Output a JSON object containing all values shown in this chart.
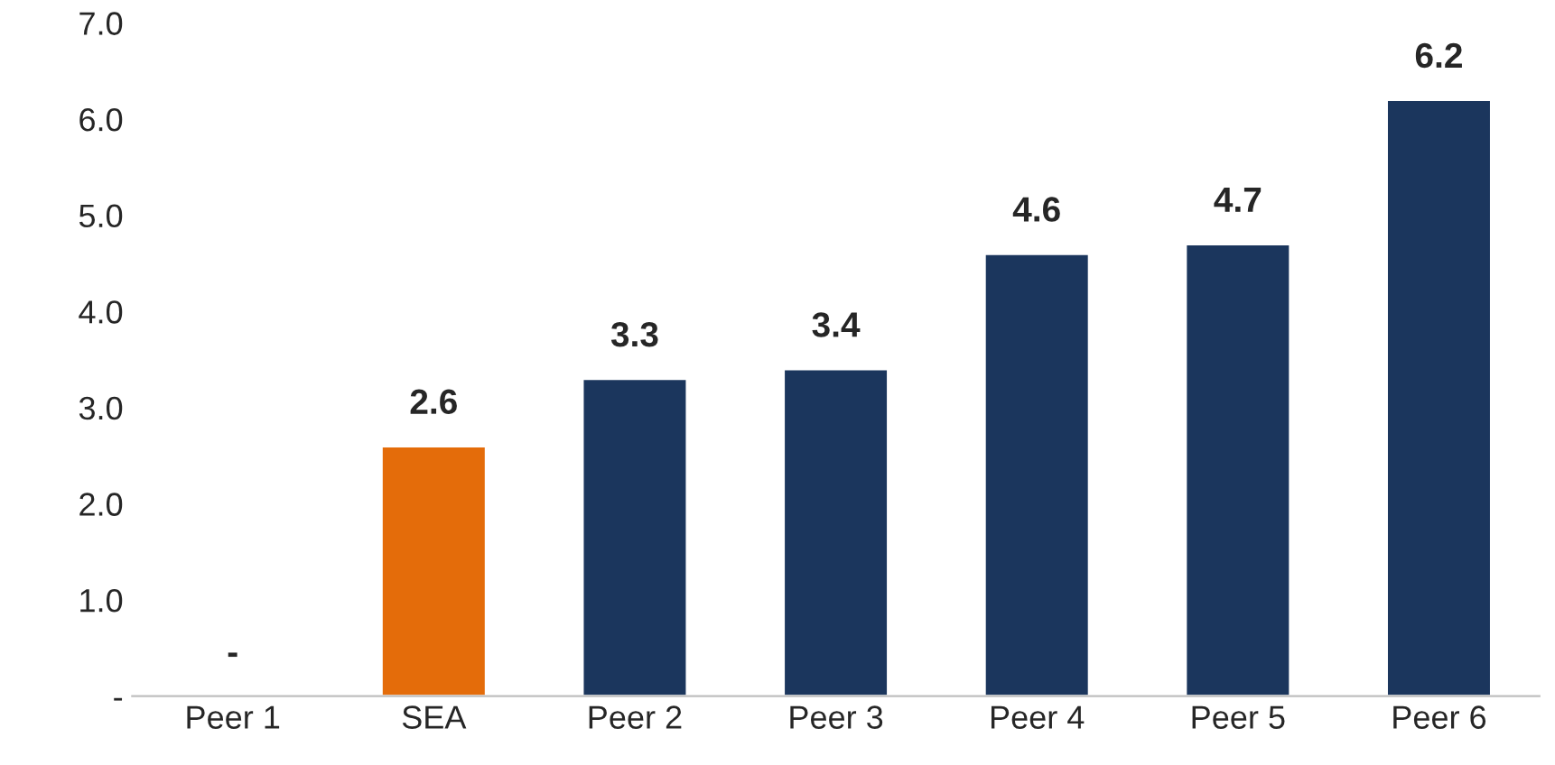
{
  "chart_data": {
    "type": "bar",
    "categories": [
      "Peer 1",
      "SEA",
      "Peer 2",
      "Peer 3",
      "Peer 4",
      "Peer 5",
      "Peer 6"
    ],
    "values": [
      null,
      2.6,
      3.3,
      3.4,
      4.6,
      4.7,
      6.2
    ],
    "colors": [
      "#1b365d",
      "#e46c0a",
      "#1b365d",
      "#1b365d",
      "#1b365d",
      "#1b365d",
      "#1b365d"
    ],
    "value_labels": [
      "-",
      "2.6",
      "3.3",
      "3.4",
      "4.6",
      "4.7",
      "6.2"
    ],
    "ylim": [
      0,
      7
    ],
    "yticks": [
      {
        "value": 0,
        "label": "-"
      },
      {
        "value": 1,
        "label": "1.0"
      },
      {
        "value": 2,
        "label": "2.0"
      },
      {
        "value": 3,
        "label": "3.0"
      },
      {
        "value": 4,
        "label": "4.0"
      },
      {
        "value": 5,
        "label": "5.0"
      },
      {
        "value": 6,
        "label": "6.0"
      },
      {
        "value": 7,
        "label": "7.0"
      }
    ],
    "grid": false,
    "legend": false
  }
}
